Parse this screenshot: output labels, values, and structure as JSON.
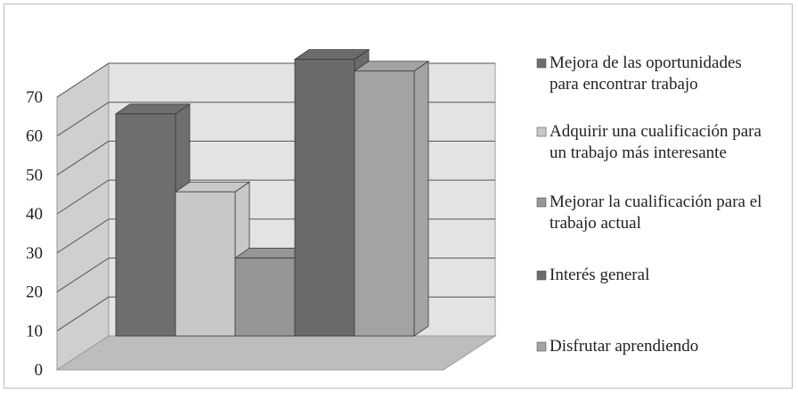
{
  "chart_data": {
    "type": "bar",
    "categories": [
      "Mejora de las oportunidades para encontrar trabajo",
      "Adquirir una cualificación para un trabajo más interesante",
      "Mejorar la cualificación para el trabajo actual",
      "Interés general",
      "Disfrutar aprendiendo"
    ],
    "values": [
      57,
      37,
      20,
      71,
      68
    ],
    "colors": [
      "#6e6e6e",
      "#c8c8c8",
      "#969696",
      "#6b6b6b",
      "#a3a3a3"
    ],
    "ylim": [
      0,
      70
    ],
    "yticks": [
      "0",
      "10",
      "20",
      "30",
      "40",
      "50",
      "60",
      "70"
    ],
    "grid": true,
    "three_d": true,
    "legend_position": "right",
    "legend": [
      {
        "line1": "Mejora de las oportunidades",
        "line2": "para encontrar trabajo"
      },
      {
        "line1": "Adquirir una cualificación para",
        "line2": "un trabajo más interesante"
      },
      {
        "line1": "Mejorar la cualificación para el",
        "line2": "trabajo actual"
      },
      {
        "line1": "Interés general",
        "line2": ""
      },
      {
        "line1": "Disfrutar aprendiendo",
        "line2": ""
      }
    ]
  }
}
